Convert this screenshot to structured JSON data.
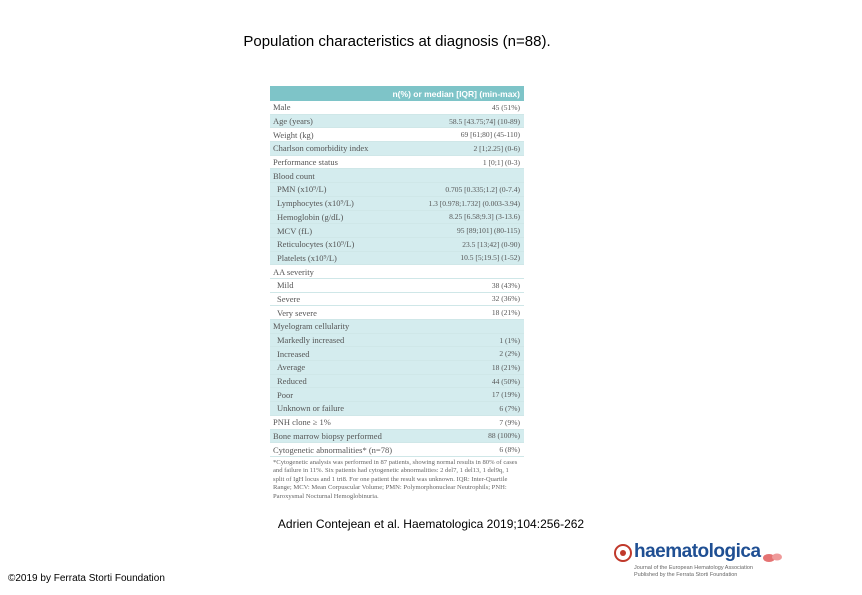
{
  "title": "Population characteristics at diagnosis (n=88).",
  "table": {
    "header": "n(%) or median [IQR] (min-max)",
    "rows": [
      {
        "label": "Male",
        "value": "45 (51%)",
        "indent": false,
        "shade": false
      },
      {
        "label": "Age (years)",
        "value": "58.5 [43.75;74] (10-89)",
        "indent": false,
        "shade": true
      },
      {
        "label": "Weight (kg)",
        "value": "69 [61;80] (45-110)",
        "indent": false,
        "shade": false
      },
      {
        "label": "Charlson comorbidity index",
        "value": "2 [1;2.25] (0-6)",
        "indent": false,
        "shade": true
      },
      {
        "label": "Performance status",
        "value": "1 [0;1] (0-3)",
        "indent": false,
        "shade": false
      },
      {
        "label": "Blood count",
        "value": "",
        "indent": false,
        "shade": true
      },
      {
        "label": "PMN (x10⁹/L)",
        "value": "0.705 [0.335;1.2] (0-7.4)",
        "indent": true,
        "shade": true
      },
      {
        "label": "Lymphocytes (x10⁹/L)",
        "value": "1.3 [0.978;1.732] (0.003-3.94)",
        "indent": true,
        "shade": true
      },
      {
        "label": "Hemoglobin (g/dL)",
        "value": "8.25 [6.58;9.3] (3-13.6)",
        "indent": true,
        "shade": true
      },
      {
        "label": "MCV (fL)",
        "value": "95 [89;101] (80-115)",
        "indent": true,
        "shade": true
      },
      {
        "label": "Reticulocytes (x10⁹/L)",
        "value": "23.5 [13;42] (0-90)",
        "indent": true,
        "shade": true
      },
      {
        "label": "Platelets (x10⁹/L)",
        "value": "10.5 [5;19.5] (1-52)",
        "indent": true,
        "shade": true
      },
      {
        "label": "AA severity",
        "value": "",
        "indent": false,
        "shade": false
      },
      {
        "label": "Mild",
        "value": "38 (43%)",
        "indent": true,
        "shade": false
      },
      {
        "label": "Severe",
        "value": "32 (36%)",
        "indent": true,
        "shade": false
      },
      {
        "label": "Very severe",
        "value": "18 (21%)",
        "indent": true,
        "shade": false
      },
      {
        "label": "Myelogram cellularity",
        "value": "",
        "indent": false,
        "shade": true
      },
      {
        "label": "Markedly increased",
        "value": "1 (1%)",
        "indent": true,
        "shade": true
      },
      {
        "label": "Increased",
        "value": "2 (2%)",
        "indent": true,
        "shade": true
      },
      {
        "label": "Average",
        "value": "18 (21%)",
        "indent": true,
        "shade": true
      },
      {
        "label": "Reduced",
        "value": "44 (50%)",
        "indent": true,
        "shade": true
      },
      {
        "label": "Poor",
        "value": "17 (19%)",
        "indent": true,
        "shade": true
      },
      {
        "label": "Unknown or failure",
        "value": "6 (7%)",
        "indent": true,
        "shade": true
      },
      {
        "label": "PNH clone ≥ 1%",
        "value": "7 (9%)",
        "indent": false,
        "shade": false
      },
      {
        "label": "Bone marrow biopsy performed",
        "value": "88 (100%)",
        "indent": false,
        "shade": true
      },
      {
        "label": "Cytogenetic abnormalities* (n=78)",
        "value": "6 (8%)",
        "indent": false,
        "shade": false
      }
    ],
    "footnote": "*Cytogenetic analysis was performed in 87 patients, showing normal results in 80% of cases and failure in 11%. Six patients had cytogenetic abnormalities: 2 del7, 1 del13, 1 del9q, 1 split of IgH locus and 1 tri8. For one patient the result was unknown. IQR: Inter-Quartile Range; MCV: Mean Corpuscular Volume; PMN: Polymorphonuclear Neutrophils; PNH: Paroxysmal Nocturnal Hemoglobinuria."
  },
  "citation": "Adrien Contejean et al. Haematologica 2019;104:256-262",
  "copyright": "©2019 by Ferrata Storti Foundation",
  "logo": {
    "name": "haematologica",
    "subtitle_line1": "Journal of the European Hematology Association",
    "subtitle_line2": "Published by the Ferrata Storti Foundation"
  }
}
